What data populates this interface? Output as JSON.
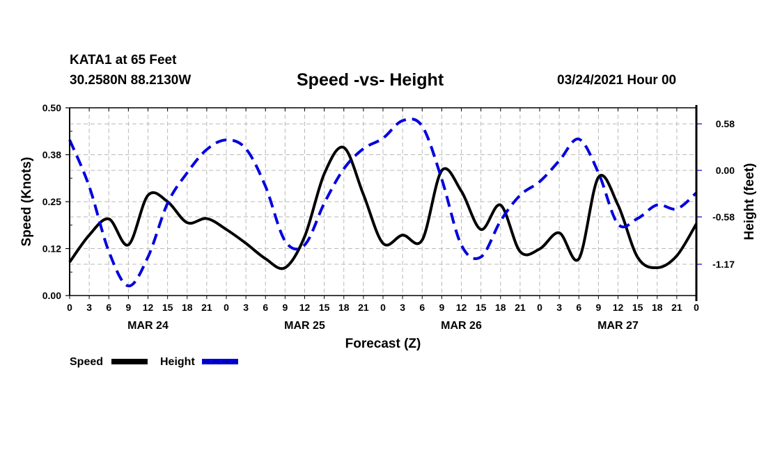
{
  "header": {
    "station": "KATA1 at 65 Feet",
    "coordinates": "30.2580N 88.2130W",
    "title": "Speed -vs- Height",
    "datetime": "03/24/2021 Hour 00"
  },
  "chart_data": {
    "type": "line",
    "title": "Speed -vs- Height",
    "xlabel": "Forecast (Z)",
    "ylabel": "Speed (Knots)",
    "y2label": "Height (feet)",
    "x": [
      0,
      3,
      6,
      9,
      12,
      15,
      18,
      21,
      24,
      27,
      30,
      33,
      36,
      39,
      42,
      45,
      48,
      51,
      54,
      57,
      60,
      63,
      66,
      69,
      72,
      75,
      78,
      81,
      84,
      87,
      90,
      93,
      96
    ],
    "xlim": [
      0,
      96
    ],
    "x_tick_labels": [
      "0",
      "3",
      "6",
      "9",
      "12",
      "15",
      "18",
      "21",
      "0",
      "3",
      "6",
      "9",
      "12",
      "15",
      "18",
      "21",
      "0",
      "3",
      "6",
      "9",
      "12",
      "15",
      "18",
      "21",
      "0",
      "3",
      "6",
      "9",
      "12",
      "15",
      "18",
      "21",
      "0"
    ],
    "day_labels": [
      {
        "label": "MAR 24",
        "center_hour": 12
      },
      {
        "label": "MAR 25",
        "center_hour": 36
      },
      {
        "label": "MAR 26",
        "center_hour": 60
      },
      {
        "label": "MAR 27",
        "center_hour": 84
      }
    ],
    "ylim": [
      0,
      0.5
    ],
    "y_tick_labels": [
      "0.00",
      "0.12",
      "0.25",
      "0.38",
      "0.50"
    ],
    "y_tick_values": [
      0,
      0.125,
      0.25,
      0.375,
      0.5
    ],
    "y2lim": [
      -1.56,
      0.78
    ],
    "y2_tick_labels": [
      "0.58",
      "0.00",
      "-0.58",
      "-1.17"
    ],
    "y2_tick_values": [
      0.58,
      0.0,
      -0.58,
      -1.17
    ],
    "grid": true,
    "legend_position": "bottom-left",
    "series": [
      {
        "name": "Speed",
        "axis": "left",
        "color": "#000000",
        "style": "solid",
        "values": [
          0.089,
          0.161,
          0.204,
          0.135,
          0.267,
          0.25,
          0.194,
          0.205,
          0.176,
          0.139,
          0.098,
          0.074,
          0.157,
          0.324,
          0.394,
          0.269,
          0.139,
          0.161,
          0.148,
          0.333,
          0.278,
          0.176,
          0.241,
          0.117,
          0.124,
          0.167,
          0.098,
          0.315,
          0.241,
          0.102,
          0.074,
          0.106,
          0.191
        ]
      },
      {
        "name": "Height",
        "axis": "right",
        "color": "#0000dd",
        "style": "dashed",
        "values": [
          0.38,
          -0.2,
          -1.01,
          -1.44,
          -1.08,
          -0.41,
          -0.03,
          0.26,
          0.38,
          0.27,
          -0.2,
          -0.88,
          -0.93,
          -0.41,
          0.02,
          0.27,
          0.4,
          0.62,
          0.55,
          -0.11,
          -0.93,
          -1.08,
          -0.63,
          -0.31,
          -0.14,
          0.12,
          0.39,
          -0.03,
          -0.67,
          -0.6,
          -0.43,
          -0.48,
          -0.28
        ]
      }
    ]
  },
  "legend": {
    "items": [
      {
        "label": "Speed",
        "color": "#000000"
      },
      {
        "label": "Height",
        "color": "#0000dd"
      }
    ]
  }
}
